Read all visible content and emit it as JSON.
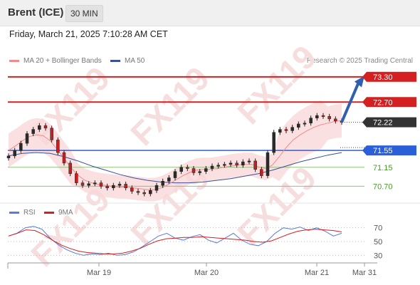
{
  "header": {
    "title": "Brent (ICE)",
    "timeframe": "30 MIN"
  },
  "timestamp": "Friday, March 21, 2025 7:10:28 AM CET",
  "legend": {
    "ma20_bb": "MA 20 + Bollinger Bands",
    "ma50": "MA 50",
    "credit": "Research © 2025 Trading Central"
  },
  "rsi_legend": {
    "rsi": "RSI",
    "ma9": "9MA"
  },
  "colors": {
    "resistance": "#d42020",
    "support_blue": "#2b5fd9",
    "support_green": "#4c9a2a",
    "last_price": "#333333",
    "candle": "#c81e1e",
    "bollinger_fill": "#f8d6d6",
    "ma20": "#f08c8c",
    "ma50": "#3a4f9e",
    "rsi": "#5a7be0",
    "rsi_ma": "#d42020",
    "arrow": "#2f5fae",
    "watermark": "#f6dede"
  },
  "watermark": "FX119",
  "chart_data": [
    {
      "type": "line",
      "title": "",
      "x_labels": [
        "Mar 19",
        "Mar 20",
        "Mar 21",
        "Mar 31"
      ],
      "ylim": [
        70.3,
        73.5
      ],
      "price_levels": [
        {
          "value": 73.3,
          "label": "73.30",
          "kind": "resistance"
        },
        {
          "value": 72.7,
          "label": "72.70",
          "kind": "resistance"
        },
        {
          "value": 72.22,
          "label": "72.22",
          "kind": "last"
        },
        {
          "value": 71.55,
          "label": "71.55",
          "kind": "support-major"
        },
        {
          "value": 71.15,
          "label": "71.15",
          "kind": "support-minor"
        },
        {
          "value": 70.7,
          "label": "70.70",
          "kind": "support-minor"
        }
      ],
      "series": [
        {
          "values": [
            71.42,
            71.55,
            71.72,
            71.95,
            72.05,
            72.14,
            72.08,
            71.8,
            71.5,
            71.25,
            71.0,
            70.78,
            70.72,
            70.76,
            70.78,
            70.7,
            70.66,
            70.72,
            70.75,
            70.66,
            70.58,
            70.55,
            70.52,
            70.6,
            70.72,
            70.82,
            70.9,
            71.05,
            71.15,
            71.12,
            71.02,
            71.05,
            71.12,
            71.18,
            71.2,
            71.22,
            71.25,
            71.2,
            71.28,
            71.3,
            71.1,
            70.95,
            71.5,
            71.98,
            72.05,
            72.02,
            72.1,
            72.18,
            72.2,
            72.32,
            72.38,
            72.36,
            72.3,
            72.25,
            72.22
          ]
        },
        {
          "name": "MA 20 + Bollinger Bands",
          "values": [
            71.55,
            71.66,
            71.78,
            71.88,
            71.92,
            71.9,
            71.78,
            71.58,
            71.36,
            71.14,
            70.96,
            70.84,
            70.78,
            70.74,
            70.72,
            70.7,
            70.68,
            70.68,
            70.66,
            70.64,
            70.62,
            70.62,
            70.66,
            70.74,
            70.84,
            70.94,
            71.02,
            71.08,
            71.1,
            71.1,
            71.12,
            71.15,
            71.18,
            71.2,
            71.22,
            71.22,
            71.16,
            71.12,
            71.2,
            71.4,
            71.62,
            71.8,
            71.92,
            72.02,
            72.1,
            72.16,
            72.2,
            72.24,
            72.26
          ]
        },
        {
          "name": "MA 50",
          "values": [
            71.42,
            71.48,
            71.5,
            71.48,
            71.4,
            71.3,
            71.18,
            71.08,
            70.98,
            70.9,
            70.84,
            70.8,
            70.78,
            70.78,
            70.8,
            70.84,
            70.88,
            70.94,
            71.0,
            71.08,
            71.18,
            71.28,
            71.36,
            71.44,
            71.5
          ]
        }
      ]
    },
    {
      "type": "line",
      "title": "",
      "ylim": [
        20,
        80
      ],
      "yticks": [
        "70",
        "50",
        "30"
      ],
      "series": [
        {
          "name": "RSI",
          "values": [
            58,
            62,
            70,
            72,
            68,
            55,
            45,
            38,
            33,
            30,
            32,
            31,
            33,
            30,
            31,
            35,
            42,
            50,
            58,
            62,
            55,
            52,
            57,
            60,
            52,
            48,
            55,
            62,
            52,
            46,
            44,
            50,
            62,
            70,
            68,
            71,
            66,
            70,
            65,
            58,
            62
          ]
        },
        {
          "name": "9MA",
          "values": [
            58,
            62,
            67,
            66,
            60,
            52,
            45,
            40,
            36,
            34,
            33,
            32,
            32,
            33,
            36,
            40,
            46,
            51,
            54,
            55,
            56,
            56,
            57,
            56,
            55,
            54,
            53,
            52,
            50,
            49,
            51,
            56,
            61,
            65,
            67,
            68,
            67,
            66,
            64
          ]
        }
      ]
    }
  ]
}
